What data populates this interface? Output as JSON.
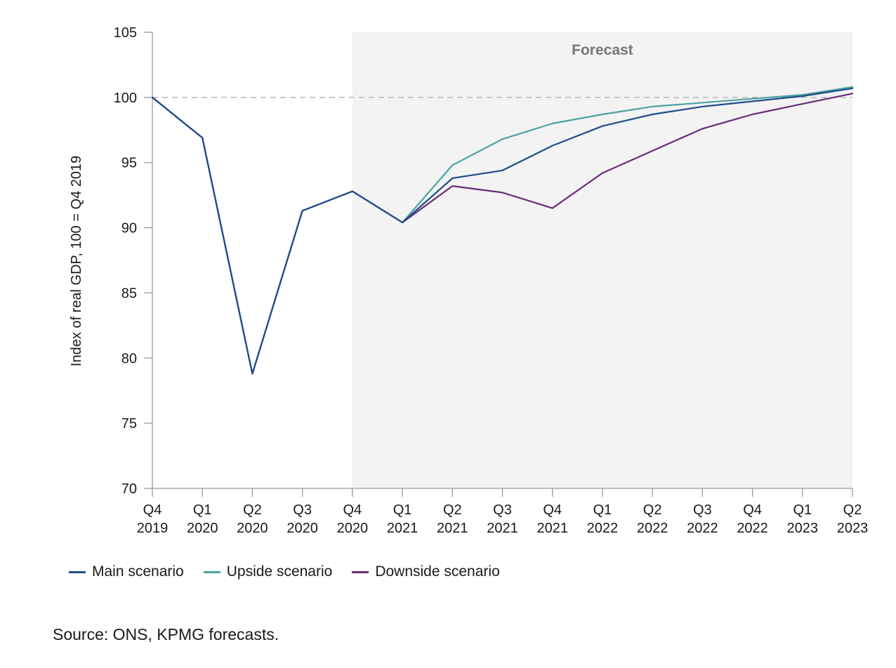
{
  "chart_data": {
    "type": "line",
    "title": "",
    "xlabel": "",
    "ylabel": "Index of real GDP, 100 = Q4 2019",
    "ylim": [
      70,
      105
    ],
    "yticks": [
      "70",
      "75",
      "80",
      "85",
      "90",
      "95",
      "100",
      "105"
    ],
    "categories": [
      [
        "Q4",
        "2019"
      ],
      [
        "Q1",
        "2020"
      ],
      [
        "Q2",
        "2020"
      ],
      [
        "Q3",
        "2020"
      ],
      [
        "Q4",
        "2020"
      ],
      [
        "Q1",
        "2021"
      ],
      [
        "Q2",
        "2021"
      ],
      [
        "Q3",
        "2021"
      ],
      [
        "Q4",
        "2021"
      ],
      [
        "Q1",
        "2022"
      ],
      [
        "Q2",
        "2022"
      ],
      [
        "Q3",
        "2022"
      ],
      [
        "Q4",
        "2022"
      ],
      [
        "Q1",
        "2023"
      ],
      [
        "Q2",
        "2023"
      ]
    ],
    "forecast_region": {
      "label": "Forecast",
      "from": "Q4 2020",
      "to": "Q2 2023",
      "color": "#f3f3f3"
    },
    "reference_line": {
      "y": 100,
      "style": "dashed",
      "color": "#aaaaaa"
    },
    "grid": false,
    "legend_position": "bottom-left",
    "series": [
      {
        "name": "Upside scenario",
        "color": "#4aa3a2",
        "values": [
          100,
          96.9,
          78.8,
          91.3,
          92.8,
          90.4,
          94.8,
          96.8,
          98.0,
          98.7,
          99.3,
          99.6,
          99.9,
          100.2,
          100.8
        ]
      },
      {
        "name": "Downside scenario",
        "color": "#6a2c7a",
        "values": [
          100,
          96.9,
          78.8,
          91.3,
          92.8,
          90.4,
          93.2,
          92.7,
          91.5,
          94.2,
          95.9,
          97.6,
          98.7,
          99.5,
          100.3
        ]
      },
      {
        "name": "Main scenario",
        "color": "#1f4d8c",
        "values": [
          100,
          96.9,
          78.8,
          91.3,
          92.8,
          90.4,
          93.8,
          94.4,
          96.3,
          97.8,
          98.7,
          99.3,
          99.7,
          100.1,
          100.7
        ]
      }
    ]
  },
  "legend": [
    {
      "label": "Main scenario",
      "color": "#1f4d8c"
    },
    {
      "label": "Upside scenario",
      "color": "#4aa3a2"
    },
    {
      "label": "Downside scenario",
      "color": "#6a2c7a"
    }
  ],
  "source": "Source: ONS, KPMG forecasts."
}
